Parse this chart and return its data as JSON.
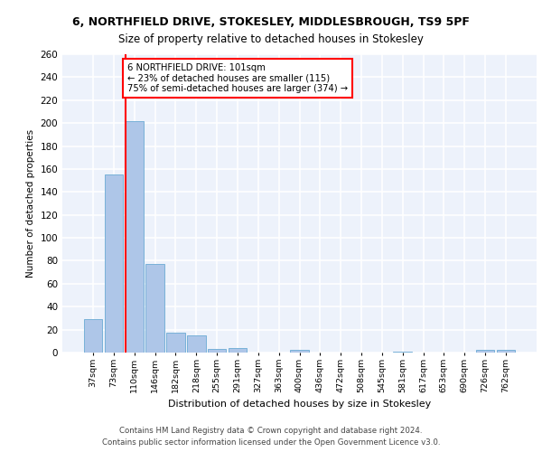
{
  "title1": "6, NORTHFIELD DRIVE, STOKESLEY, MIDDLESBROUGH, TS9 5PF",
  "title2": "Size of property relative to detached houses in Stokesley",
  "xlabel": "Distribution of detached houses by size in Stokesley",
  "ylabel": "Number of detached properties",
  "footnote1": "Contains HM Land Registry data © Crown copyright and database right 2024.",
  "footnote2": "Contains public sector information licensed under the Open Government Licence v3.0.",
  "bar_labels": [
    "37sqm",
    "73sqm",
    "110sqm",
    "146sqm",
    "182sqm",
    "218sqm",
    "255sqm",
    "291sqm",
    "327sqm",
    "363sqm",
    "400sqm",
    "436sqm",
    "472sqm",
    "508sqm",
    "545sqm",
    "581sqm",
    "617sqm",
    "653sqm",
    "690sqm",
    "726sqm",
    "762sqm"
  ],
  "bar_values": [
    29,
    155,
    202,
    77,
    17,
    15,
    3,
    4,
    0,
    0,
    2,
    0,
    0,
    0,
    0,
    1,
    0,
    0,
    0,
    2,
    2
  ],
  "bar_color": "#aec6e8",
  "bar_edge_color": "#6aaad4",
  "ylim": [
    0,
    260
  ],
  "yticks": [
    0,
    20,
    40,
    60,
    80,
    100,
    120,
    140,
    160,
    180,
    200,
    220,
    240,
    260
  ],
  "property_label": "6 NORTHFIELD DRIVE: 101sqm",
  "annotation_line1": "← 23% of detached houses are smaller (115)",
  "annotation_line2": "75% of semi-detached houses are larger (374) →",
  "red_line_bar_index": 2,
  "background_color": "#edf2fb",
  "grid_color": "#ffffff"
}
